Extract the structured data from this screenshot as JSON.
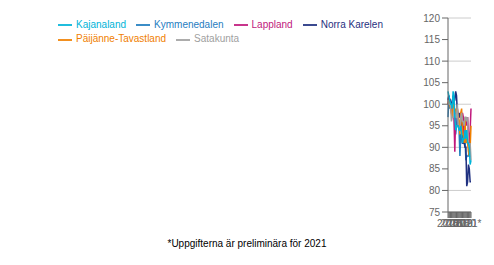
{
  "chart_data": {
    "type": "line",
    "categories": [
      "2015",
      null,
      null,
      null,
      "2016",
      null,
      null,
      null,
      "2017",
      null,
      null,
      null,
      "2018",
      null,
      null,
      null,
      "2019",
      null,
      null,
      null,
      "2020",
      null,
      null,
      null,
      "2021*",
      null,
      null,
      null
    ],
    "series": [
      {
        "name": "Kymmenedalen",
        "color": "#1f7dbf",
        "values": [
          97,
          101,
          99,
          100,
          99,
          98,
          99,
          102,
          94,
          93,
          95,
          98,
          95,
          94,
          88,
          93,
          93,
          91,
          91,
          92,
          92,
          87,
          88,
          88,
          88,
          90,
          88,
          88
        ]
      },
      {
        "name": "Lappland",
        "color": "#c0187c",
        "values": [
          100,
          102,
          101,
          100,
          98,
          98,
          99,
          97,
          89,
          98,
          98,
          99,
          97,
          97,
          97,
          98,
          95,
          98,
          97,
          91,
          96,
          97,
          95,
          97,
          93,
          91,
          94,
          99
        ]
      },
      {
        "name": "Norra Karelen",
        "color": "#1f3080",
        "values": [
          101,
          102,
          101,
          101,
          100,
          100,
          102,
          101,
          101,
          103,
          102,
          98,
          97,
          98,
          97,
          98,
          97,
          91,
          91,
          91,
          90,
          90,
          81,
          82,
          86,
          85,
          82,
          82
        ]
      },
      {
        "name": "Päijänne-Tavastland",
        "color": "#f08000",
        "values": [
          100,
          101,
          100,
          99,
          98,
          97,
          100,
          99,
          98,
          99,
          98,
          99,
          97,
          96,
          93,
          98,
          99,
          93,
          93,
          91,
          97,
          91,
          92,
          91,
          89,
          88,
          90,
          95
        ]
      },
      {
        "name": "Satakunta",
        "color": "#a0a0a0",
        "values": [
          101,
          100,
          100,
          100,
          96,
          97,
          97,
          99,
          98,
          97,
          97,
          100,
          95,
          94,
          94,
          97,
          98,
          96,
          96,
          95,
          97,
          97,
          96,
          97,
          91,
          90,
          91,
          87
        ]
      },
      {
        "name": "Kajanaland",
        "color": "#00b4d8",
        "values": [
          103,
          102,
          101,
          100,
          100,
          99,
          103,
          102,
          97,
          94,
          95,
          95,
          95,
          94,
          94,
          95,
          93,
          91,
          92,
          92,
          94,
          92,
          94,
          91,
          91,
          90,
          86,
          87
        ]
      }
    ],
    "ylim": [
      75,
      120
    ],
    "yticks": [
      75,
      80,
      85,
      90,
      95,
      100,
      105,
      110,
      115,
      120
    ],
    "grid": "y",
    "legend": "upper left",
    "annotations": [
      "*Uppgifterna är preliminära för 2021"
    ]
  }
}
